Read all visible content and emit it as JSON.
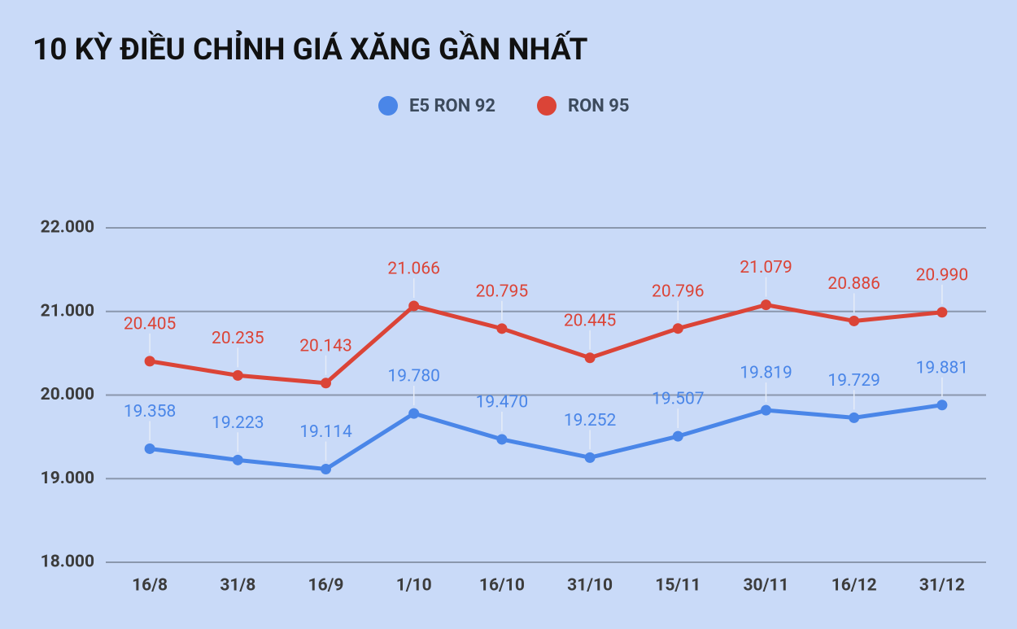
{
  "chart_data": {
    "type": "line",
    "title": "10 KỲ ĐIỀU CHỈNH GIÁ XĂNG GẦN NHẤT",
    "categories": [
      "16/8",
      "31/8",
      "16/9",
      "1/10",
      "16/10",
      "31/10",
      "15/11",
      "30/11",
      "16/12",
      "31/12"
    ],
    "series": [
      {
        "name": "E5 RON 92",
        "color": "#4a86e8",
        "values": [
          19358,
          19223,
          19114,
          19780,
          19470,
          19252,
          19507,
          19819,
          19729,
          19881
        ],
        "value_labels": [
          "19.358",
          "19.223",
          "19.114",
          "19.780",
          "19.470",
          "19.252",
          "19.507",
          "19.819",
          "19.729",
          "19.881"
        ]
      },
      {
        "name": "RON 95",
        "color": "#db4437",
        "values": [
          20405,
          20235,
          20143,
          21066,
          20795,
          20445,
          20796,
          21079,
          20886,
          20990
        ],
        "value_labels": [
          "20.405",
          "20.235",
          "20.143",
          "21.066",
          "20.795",
          "20.445",
          "20.796",
          "21.079",
          "20.886",
          "20.990"
        ]
      }
    ],
    "ylim": [
      18000,
      22000
    ],
    "yticks": [
      {
        "value": 18000,
        "label": "18.000"
      },
      {
        "value": 19000,
        "label": "19.000"
      },
      {
        "value": 20000,
        "label": "20.000"
      },
      {
        "value": 21000,
        "label": "21.000"
      },
      {
        "value": 22000,
        "label": "22.000"
      }
    ],
    "grid": true
  }
}
